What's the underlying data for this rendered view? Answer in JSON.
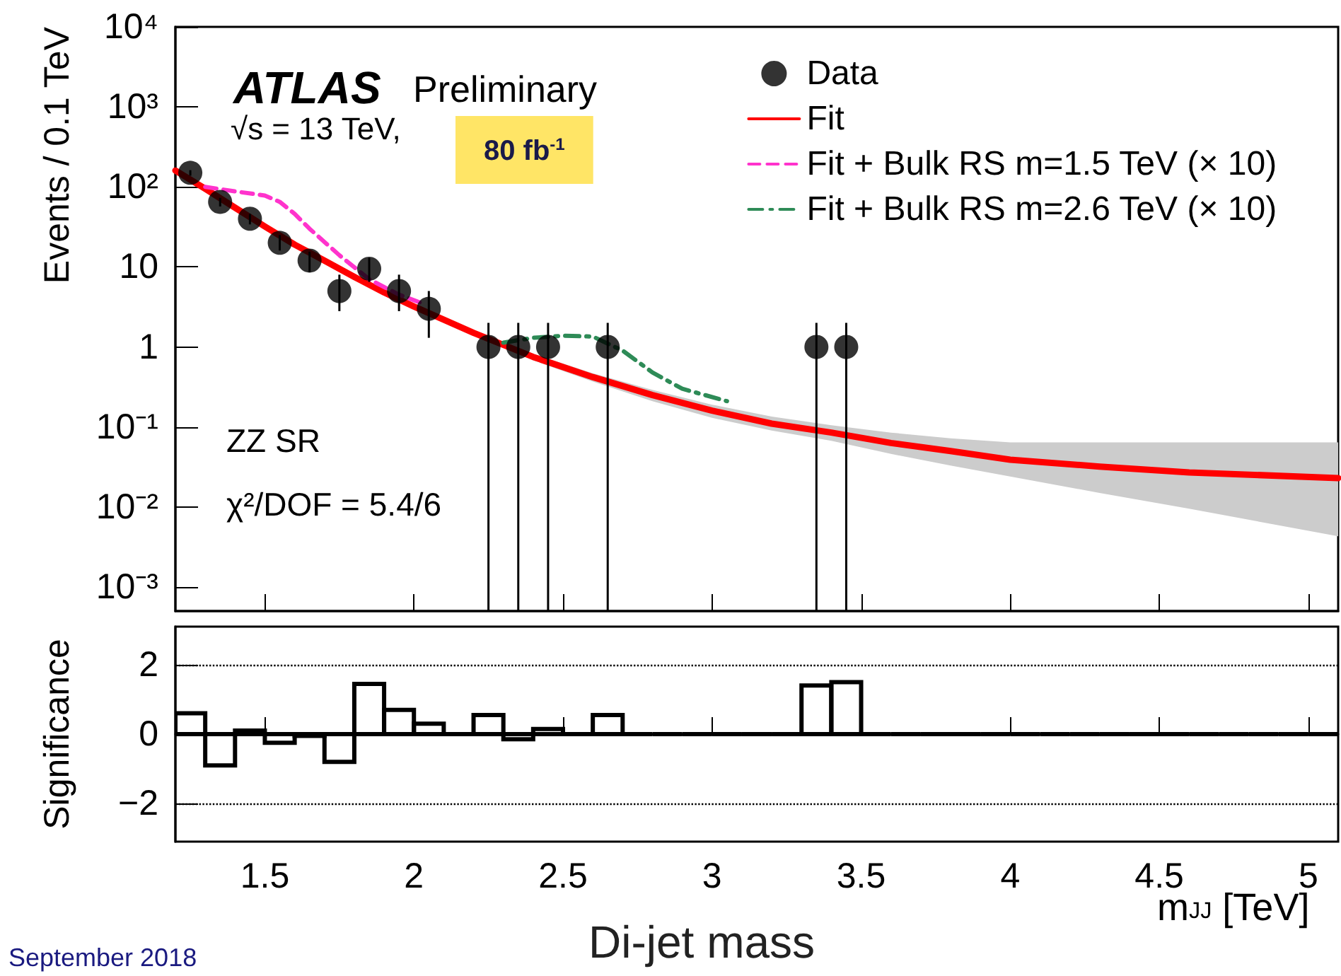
{
  "chart_data": [
    {
      "type": "line",
      "ylabel": "Events / 0.1 TeV",
      "annotations": [
        "ATLAS",
        "Preliminary",
        "√s = 13 TeV,",
        "80 fb$^{-1}$",
        "ZZ SR",
        "χ²/DOF = 5.4/6"
      ],
      "xlim": [
        1.2,
        5.1
      ],
      "xticks": [
        1.5,
        2,
        2.5,
        3,
        3.5,
        4,
        4.5,
        5
      ],
      "ylim": [
        0.0005,
        10000
      ],
      "yticks": [
        {
          "value": 0.001,
          "label": "10⁻³"
        },
        {
          "value": 0.01,
          "label": "10⁻²"
        },
        {
          "value": 0.1,
          "label": "10⁻¹"
        },
        1,
        10,
        {
          "value": 100,
          "label": "10²"
        },
        {
          "value": 1000,
          "label": "10³"
        },
        {
          "value": 10000,
          "label": "10⁴"
        }
      ],
      "log": "y",
      "legend": "top right",
      "tick_labels": "y",
      "series": [
        {
          "name": "Data",
          "type": "scatter",
          "marker": "circle",
          "color": "#000000",
          "x": [
            1.25,
            1.35,
            1.45,
            1.55,
            1.65,
            1.75,
            1.85,
            1.95,
            2.05,
            2.25,
            2.35,
            2.45,
            2.65,
            3.35,
            3.45
          ],
          "values": [
            150,
            65,
            40,
            20,
            12,
            5,
            9.5,
            5,
            3,
            1,
            1,
            1,
            1,
            1,
            1
          ],
          "errors": [
            [
              138,
              162
            ],
            [
              57,
              73
            ],
            [
              34,
              46
            ],
            [
              16,
              25
            ],
            [
              8.6,
              15.5
            ],
            [
              2.8,
              8
            ],
            [
              6.5,
              13
            ],
            [
              2.8,
              8
            ],
            [
              1.3,
              5
            ],
            [
              0.0005,
              2
            ],
            [
              0.0005,
              2
            ],
            [
              0.0005,
              2
            ],
            [
              0.0005,
              2
            ],
            [
              0.0005,
              2
            ],
            [
              0.0005,
              2
            ]
          ]
        },
        {
          "name": "Fit",
          "type": "line",
          "marker": "none",
          "line_style": "solid",
          "color": "#ff0000",
          "x": [
            1.2,
            1.3,
            1.4,
            1.5,
            1.6,
            1.7,
            1.8,
            1.9,
            2.0,
            2.2,
            2.4,
            2.6,
            2.8,
            3.0,
            3.2,
            3.4,
            3.6,
            3.8,
            4.0,
            4.3,
            4.6,
            5.1
          ],
          "values": [
            160,
            95,
            55,
            32,
            19,
            12,
            7.5,
            4.8,
            3.2,
            1.5,
            0.75,
            0.42,
            0.25,
            0.16,
            0.11,
            0.085,
            0.063,
            0.05,
            0.039,
            0.032,
            0.027,
            0.023
          ],
          "upper": [
            170,
            100,
            58,
            34,
            20,
            12.7,
            8,
            5.1,
            3.4,
            1.6,
            0.82,
            0.47,
            0.29,
            0.19,
            0.135,
            0.105,
            0.085,
            0.072,
            0.064,
            0.064,
            0.064,
            0.064
          ],
          "lower": [
            150,
            90,
            52,
            30,
            18,
            11.3,
            7,
            4.5,
            3.0,
            1.4,
            0.68,
            0.37,
            0.21,
            0.13,
            0.09,
            0.067,
            0.046,
            0.033,
            0.024,
            0.015,
            0.0095,
            0.0043
          ]
        },
        {
          "name": "Fit + Bulk RS m=1.5 TeV (× 10)",
          "type": "line",
          "marker": "none",
          "line_style": "dashed",
          "color": "#ff33cc",
          "x": [
            1.3,
            1.4,
            1.5,
            1.55,
            1.6,
            1.65,
            1.75,
            1.85,
            1.95,
            2.02
          ],
          "values": [
            100,
            88,
            78,
            65,
            46,
            30,
            14,
            7,
            4.5,
            3.6
          ]
        },
        {
          "name": "Fit + Bulk RS m=2.6 TeV (× 10)",
          "type": "line",
          "marker": "none",
          "line_style": "dotted",
          "color": "#2e8b57",
          "x": [
            2.3,
            2.4,
            2.5,
            2.6,
            2.7,
            2.8,
            2.9,
            3.05
          ],
          "values": [
            1.13,
            1.3,
            1.38,
            1.35,
            0.9,
            0.48,
            0.3,
            0.21
          ]
        }
      ]
    },
    {
      "type": "histogram",
      "xlabel": "m$_{JJ}$ [TeV]",
      "ylabel": "Significance",
      "annotations": [
        "Di-jet mass",
        "September 2018"
      ],
      "color": "#000000",
      "bins": [
        1.2,
        1.3,
        1.4,
        1.5,
        1.6,
        1.7,
        1.8,
        1.9,
        2.0,
        2.1,
        2.2,
        2.3,
        2.4,
        2.5,
        2.6,
        2.7,
        2.8,
        2.9,
        3.0,
        3.1,
        3.2,
        3.3,
        3.4,
        3.5,
        3.6,
        3.7,
        3.8,
        3.9,
        4.0,
        4.1,
        4.2,
        4.3,
        4.4,
        4.5,
        4.6,
        4.7,
        4.8,
        4.9,
        5.0,
        5.1
      ],
      "values": [
        0.6,
        -0.9,
        0.1,
        -0.25,
        -0.05,
        -0.8,
        1.45,
        0.7,
        0.3,
        0,
        0.55,
        -0.15,
        0.15,
        0,
        0.55,
        0,
        0,
        0,
        0,
        0,
        0,
        1.4,
        1.5,
        0,
        0,
        0,
        0,
        0,
        0,
        0,
        0,
        0,
        0,
        0,
        0,
        0,
        0,
        0,
        0
      ],
      "xlim": [
        1.2,
        5.1
      ],
      "xticks": [
        1.5,
        2,
        2.5,
        3,
        3.5,
        4,
        4.5,
        5
      ],
      "ylim": [
        -3.1,
        3.1
      ],
      "yticks": [
        {
          "value": -2,
          "label": "−2"
        },
        0,
        2
      ],
      "grid": "y"
    }
  ]
}
